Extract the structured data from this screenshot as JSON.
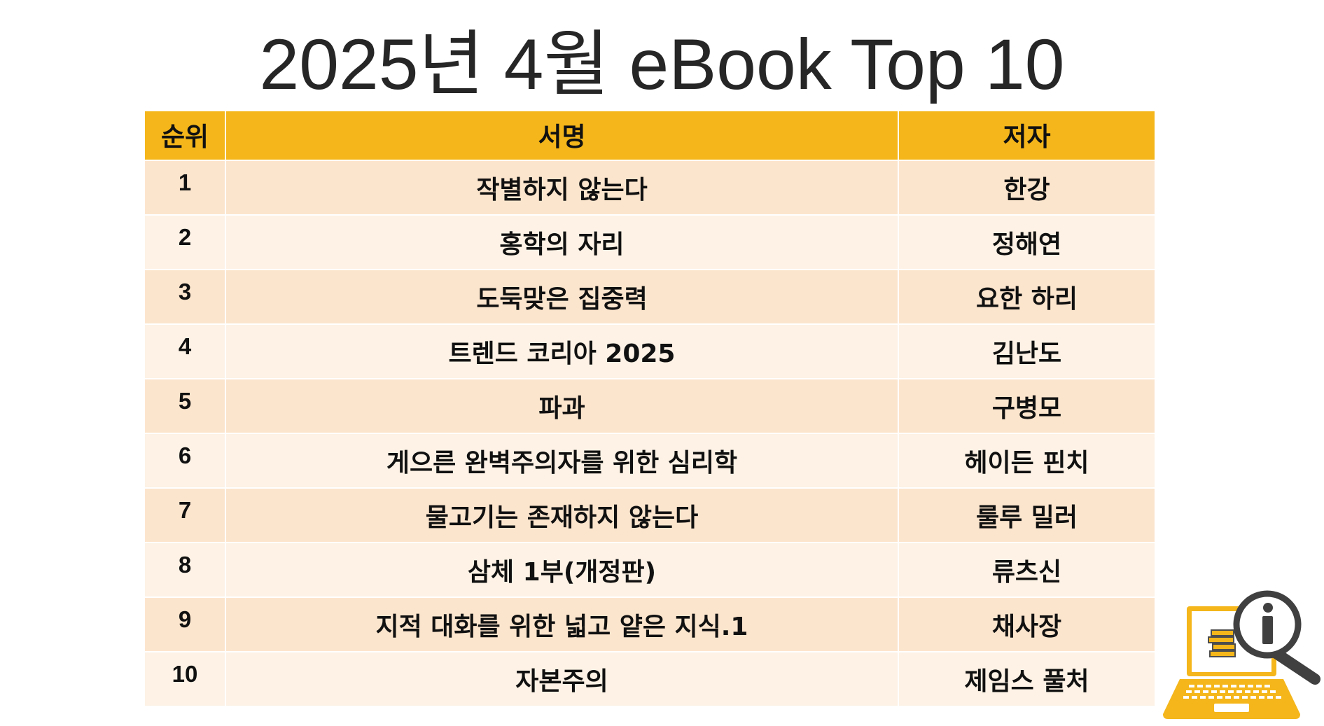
{
  "title": "2025년 4월 eBook Top 10",
  "table": {
    "headers": [
      "순위",
      "서명",
      "저자"
    ],
    "rows": [
      {
        "rank": "1",
        "book": "작별하지 않는다",
        "author": "한강"
      },
      {
        "rank": "2",
        "book": "홍학의 자리",
        "author": "정해연"
      },
      {
        "rank": "3",
        "book": "도둑맞은 집중력",
        "author": "요한 하리"
      },
      {
        "rank": "4",
        "book": "트렌드 코리아 2025",
        "author": "김난도"
      },
      {
        "rank": "5",
        "book": "파과",
        "author": "구병모"
      },
      {
        "rank": "6",
        "book": "게으른 완벽주의자를 위한 심리학",
        "author": "헤이든 핀치"
      },
      {
        "rank": "7",
        "book": "물고기는 존재하지 않는다",
        "author": "룰루 밀러"
      },
      {
        "rank": "8",
        "book": "삼체 1부(개정판)",
        "author": "류츠신"
      },
      {
        "rank": "9",
        "book": "지적 대화를 위한 넓고 얕은 지식.1",
        "author": "채사장"
      },
      {
        "rank": "10",
        "book": "자본주의",
        "author": "제임스 풀처"
      }
    ]
  },
  "colors": {
    "header_bg": "#f4b61a",
    "row_odd_bg": "#fce5cd",
    "row_even_bg": "#fdf2e5",
    "title_text": "#262626"
  },
  "icons": [
    "laptop-ebook-search-icon"
  ]
}
